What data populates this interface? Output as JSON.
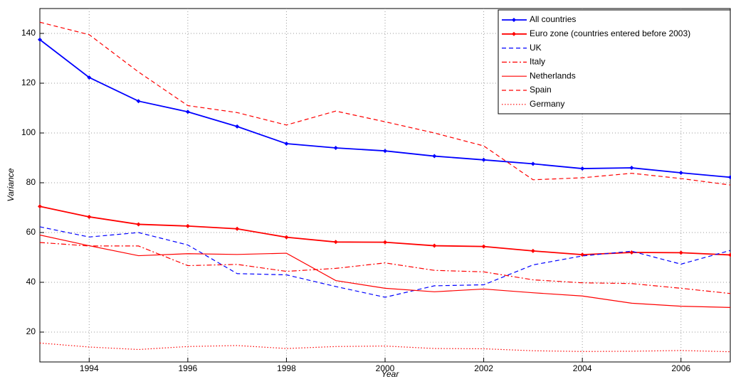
{
  "chart_data": {
    "type": "line",
    "x_label": "Year",
    "y_label": "Variance",
    "x": [
      1993,
      1994,
      1995,
      1996,
      1997,
      1998,
      1999,
      2000,
      2001,
      2002,
      2003,
      2004,
      2005,
      2006,
      2007
    ],
    "xlim": [
      1993,
      2007
    ],
    "xticks": [
      1994,
      1996,
      1998,
      2000,
      2002,
      2004,
      2006
    ],
    "ylim": [
      8,
      150
    ],
    "yticks": [
      20,
      40,
      60,
      80,
      100,
      120,
      140
    ],
    "grid": true,
    "legend": "northeast",
    "series": [
      {
        "name": "All countries",
        "color": "#0000ff",
        "dash": "solid",
        "marker": true,
        "values": [
          137.5,
          122.3,
          112.8,
          108.5,
          102.6,
          95.7,
          94,
          92.8,
          90.7,
          89.2,
          87.6,
          85.7,
          86,
          84,
          82.2
        ]
      },
      {
        "name": "Euro zone (countries entered before 2003)",
        "color": "#ff0000",
        "dash": "solid",
        "marker": true,
        "values": [
          70.5,
          66.3,
          63.3,
          62.6,
          61.5,
          58.1,
          56.2,
          56.1,
          54.7,
          54.4,
          52.6,
          51.1,
          52,
          51.9,
          51
        ]
      },
      {
        "name": "UK",
        "color": "#0000ff",
        "dash": "dashed",
        "marker": false,
        "values": [
          62.3,
          58.2,
          60,
          55,
          43.5,
          43,
          38.3,
          34,
          38.6,
          39,
          47,
          50.6,
          52.5,
          47.3,
          52.8
        ]
      },
      {
        "name": "Italy",
        "color": "#ff0000",
        "dash": "dashdot",
        "marker": false,
        "values": [
          56,
          54.6,
          54.6,
          46.7,
          47.2,
          44.4,
          45.6,
          47.8,
          44.8,
          44.2,
          41,
          39.8,
          39.5,
          37.6,
          35.5
        ]
      },
      {
        "name": "Netherlands",
        "color": "#ff0000",
        "dash": "solid",
        "marker": false,
        "values": [
          59,
          54.7,
          50.7,
          51.5,
          51.2,
          51.7,
          40.7,
          37.6,
          36.2,
          37.3,
          35.8,
          34.5,
          31.6,
          30.4,
          29.9
        ]
      },
      {
        "name": "Spain",
        "color": "#ff0000",
        "dash": "dashed",
        "marker": false,
        "values": [
          144.5,
          139.5,
          124.5,
          111,
          108.2,
          103.2,
          108.8,
          104.5,
          100,
          94.8,
          81.2,
          82,
          83.8,
          81.7,
          79.1
        ]
      },
      {
        "name": "Germany",
        "color": "#ff0000",
        "dash": "dotted",
        "marker": false,
        "values": [
          15.6,
          14,
          13,
          14.2,
          14.6,
          13.4,
          14.2,
          14.4,
          13.4,
          13.3,
          12.5,
          12.2,
          12.3,
          12.6,
          12.1
        ]
      }
    ]
  }
}
